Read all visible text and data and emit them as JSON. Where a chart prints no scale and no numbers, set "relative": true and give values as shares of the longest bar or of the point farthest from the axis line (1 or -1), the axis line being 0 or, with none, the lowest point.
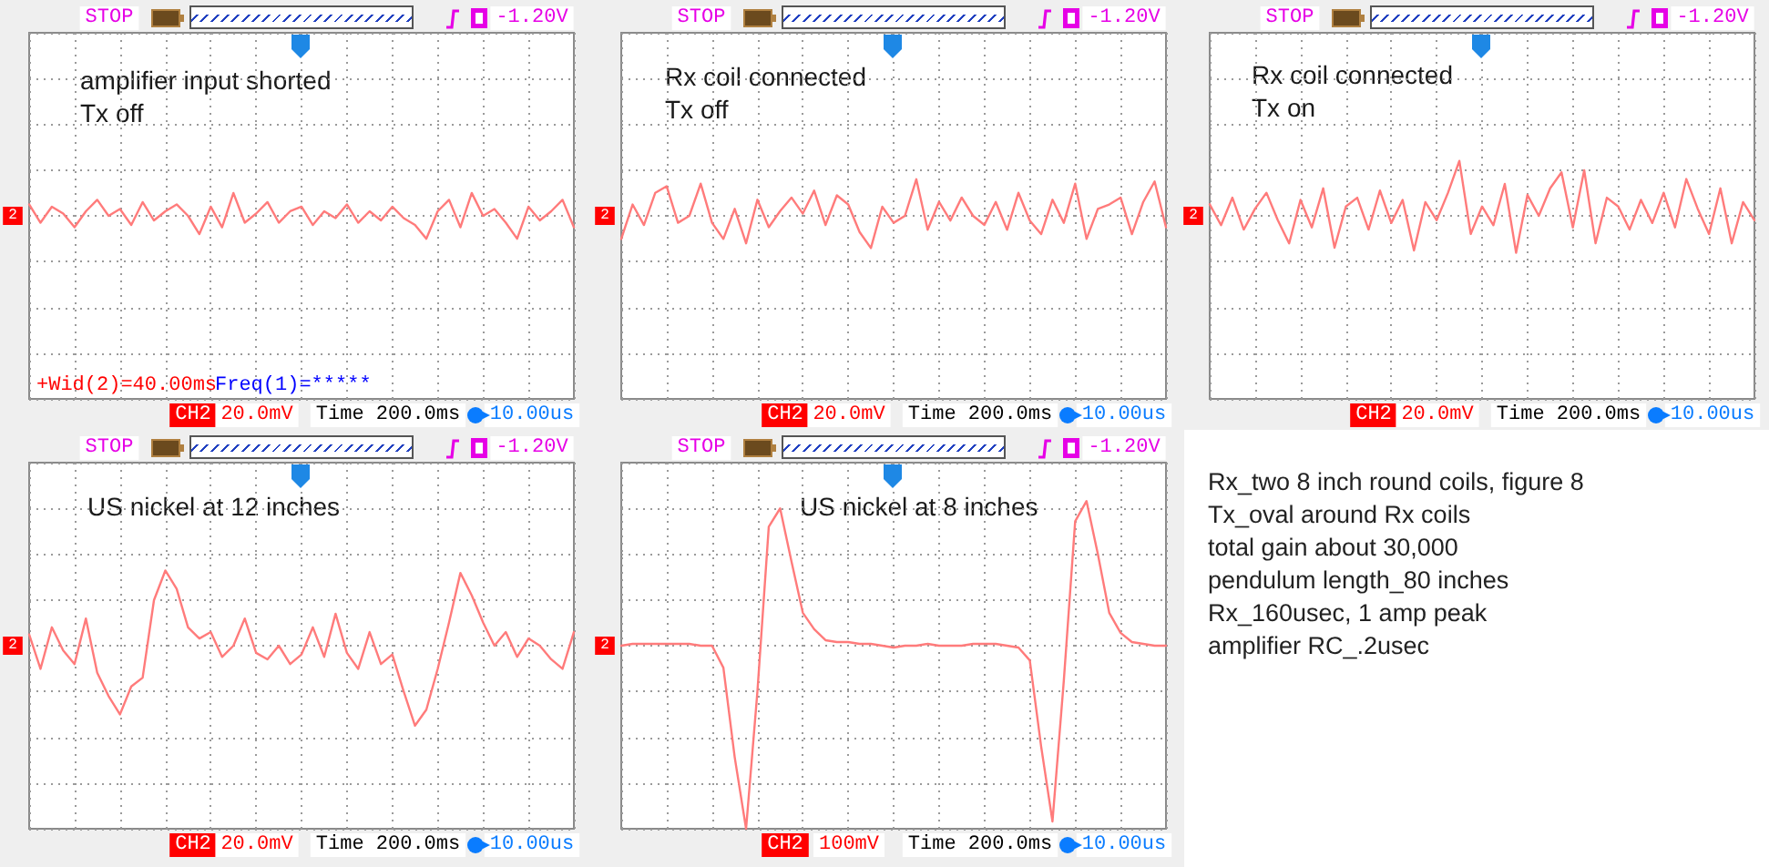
{
  "chart_data": [
    {
      "type": "line",
      "relative": true,
      "title": "amplifier input shorted",
      "subtitle": "Tx off",
      "annotations": [
        "STOP",
        "-1.20V",
        "CH2",
        "20.0mV",
        "Time 200.0ms",
        "10.00us",
        "2",
        "+Wid(2)=40.00ms",
        "Freq(1)=*****"
      ],
      "grid": true,
      "marker": "none",
      "line_style": "solid",
      "categories": [
        null,
        null,
        null,
        null,
        null,
        null,
        null,
        null,
        null,
        null,
        null,
        null,
        null,
        null,
        null,
        null,
        null,
        null,
        null,
        null,
        null,
        null,
        null,
        null,
        null,
        null,
        null,
        null,
        null,
        null,
        null,
        null,
        null,
        null,
        null,
        null,
        null,
        null,
        null,
        null,
        null,
        null,
        null,
        null,
        null,
        null,
        null,
        null,
        null
      ],
      "series": [
        {
          "color": "#ff7b7b",
          "values": [
            0.5,
            -0.3,
            0.4,
            0.1,
            -0.5,
            0.2,
            0.7,
            0,
            0.3,
            -0.4,
            0.6,
            -0.2,
            0.2,
            0.5,
            0,
            -0.8,
            0.4,
            -0.5,
            1,
            -0.3,
            0.1,
            0.6,
            -0.3,
            0.2,
            0.4,
            -0.4,
            0.2,
            -0.1,
            0.5,
            -0.3,
            0.2,
            -0.2,
            0.4,
            -0.1,
            -0.4,
            -1,
            0.2,
            0.7,
            -0.5,
            1,
            0,
            0.3,
            -0.3,
            -1,
            0.4,
            -0.2,
            0.2,
            0.7,
            -0.5
          ]
        }
      ]
    },
    {
      "type": "line",
      "relative": true,
      "title": "Rx coil connected",
      "subtitle": "Tx off",
      "annotations": [
        "STOP",
        "-1.20V",
        "CH2",
        "20.0mV",
        "Time 200.0ms",
        "10.00us",
        "2"
      ],
      "grid": true,
      "marker": "none",
      "line_style": "solid",
      "categories": [
        null,
        null,
        null,
        null,
        null,
        null,
        null,
        null,
        null,
        null,
        null,
        null,
        null,
        null,
        null,
        null,
        null,
        null,
        null,
        null,
        null,
        null,
        null,
        null,
        null,
        null,
        null,
        null,
        null,
        null,
        null,
        null,
        null,
        null,
        null,
        null,
        null,
        null,
        null,
        null,
        null,
        null,
        null,
        null,
        null,
        null,
        null,
        null,
        null
      ],
      "series": [
        {
          "color": "#ff7b7b",
          "values": [
            -0.63,
            0.31,
            -0.25,
            0.63,
            0.81,
            -0.19,
            0,
            0.88,
            -0.19,
            -0.63,
            0.19,
            -0.75,
            0.44,
            -0.31,
            0.13,
            0.5,
            0.06,
            0.69,
            -0.25,
            0.56,
            0.31,
            -0.44,
            -0.88,
            0.25,
            -0.19,
            0,
            1,
            -0.38,
            0.38,
            -0.13,
            0.5,
            0,
            -0.25,
            0.38,
            -0.38,
            0.63,
            -0.13,
            -0.5,
            0.44,
            -0.19,
            0.88,
            -0.63,
            0.19,
            0.31,
            0.5,
            -0.5,
            0.38,
            0.94,
            -0.31
          ]
        }
      ]
    },
    {
      "type": "line",
      "relative": true,
      "title": "Rx coil connected",
      "subtitle": "Tx on",
      "annotations": [
        "STOP",
        "-1.20V",
        "CH2",
        "20.0mV",
        "Time 200.0ms",
        "10.00us",
        "2"
      ],
      "grid": true,
      "marker": "none",
      "line_style": "solid",
      "categories": [
        null,
        null,
        null,
        null,
        null,
        null,
        null,
        null,
        null,
        null,
        null,
        null,
        null,
        null,
        null,
        null,
        null,
        null,
        null,
        null,
        null,
        null,
        null,
        null,
        null,
        null,
        null,
        null,
        null,
        null,
        null,
        null,
        null,
        null,
        null,
        null,
        null,
        null,
        null,
        null,
        null,
        null,
        null,
        null,
        null,
        null,
        null,
        null,
        null
      ],
      "series": [
        {
          "color": "#ff7b7b",
          "values": [
            0.21,
            -0.17,
            0.33,
            -0.25,
            0.13,
            0.42,
            -0.08,
            -0.5,
            0.29,
            -0.21,
            0.5,
            -0.58,
            0.17,
            0.33,
            -0.25,
            0.46,
            -0.13,
            0.29,
            -0.63,
            0.25,
            -0.08,
            0.42,
            1,
            -0.33,
            0.17,
            -0.17,
            0.58,
            -0.67,
            0.38,
            0,
            0.5,
            0.79,
            -0.21,
            0.83,
            -0.5,
            0.33,
            0.17,
            -0.25,
            0.29,
            -0.13,
            0.42,
            -0.21,
            0.67,
            0.13,
            -0.33,
            0.5,
            -0.5,
            0.25,
            -0.08
          ]
        }
      ]
    },
    {
      "type": "line",
      "relative": true,
      "title": "US nickel at 12 inches",
      "annotations": [
        "STOP",
        "-1.20V",
        "CH2",
        "20.0mV",
        "Time 200.0ms",
        "10.00us",
        "2"
      ],
      "grid": true,
      "marker": "none",
      "line_style": "solid",
      "categories": [
        null,
        null,
        null,
        null,
        null,
        null,
        null,
        null,
        null,
        null,
        null,
        null,
        null,
        null,
        null,
        null,
        null,
        null,
        null,
        null,
        null,
        null,
        null,
        null,
        null,
        null,
        null,
        null,
        null,
        null,
        null,
        null,
        null,
        null,
        null,
        null,
        null,
        null,
        null,
        null,
        null,
        null,
        null,
        null,
        null,
        null,
        null,
        null,
        null
      ],
      "series": [
        {
          "color": "#ff7b7b",
          "values": [
            0.14,
            -0.29,
            0.23,
            -0.06,
            -0.23,
            0.34,
            -0.34,
            -0.63,
            -0.86,
            -0.51,
            -0.4,
            0.57,
            0.94,
            0.71,
            0.23,
            0.09,
            0.17,
            -0.14,
            0,
            0.34,
            -0.09,
            -0.17,
            0,
            -0.23,
            -0.11,
            0.23,
            -0.14,
            0.4,
            -0.09,
            -0.29,
            0.17,
            -0.23,
            -0.11,
            -0.57,
            -1,
            -0.8,
            -0.29,
            0.29,
            0.91,
            0.63,
            0.29,
            0,
            0.17,
            -0.14,
            0.09,
            0,
            -0.17,
            -0.29,
            0.17
          ]
        }
      ]
    },
    {
      "type": "line",
      "relative": true,
      "title": "US nickel at 8 inches",
      "annotations": [
        "STOP",
        "-1.20V",
        "CH2",
        "100mV",
        "Time 200.0ms",
        "10.00us",
        "2"
      ],
      "grid": true,
      "marker": "none",
      "line_style": "solid",
      "categories": [
        null,
        null,
        null,
        null,
        null,
        null,
        null,
        null,
        null,
        null,
        null,
        null,
        null,
        null,
        null,
        null,
        null,
        null,
        null,
        null,
        null,
        null,
        null,
        null,
        null,
        null,
        null,
        null,
        null,
        null,
        null,
        null,
        null,
        null,
        null,
        null,
        null,
        null,
        null,
        null,
        null,
        null,
        null,
        null,
        null,
        null,
        null,
        null,
        null
      ],
      "series": [
        {
          "color": "#ff7b7b",
          "values": [
            0,
            0.01,
            0.01,
            0.01,
            0.01,
            0.01,
            0.01,
            0,
            0,
            -0.12,
            -0.61,
            -1,
            -0.25,
            0.65,
            0.75,
            0.46,
            0.18,
            0.09,
            0.03,
            0.02,
            0.02,
            0.01,
            0.01,
            0,
            -0.01,
            0,
            0,
            0.01,
            0,
            0,
            0,
            0.01,
            0.01,
            0.01,
            0,
            -0.01,
            -0.08,
            -0.55,
            -0.96,
            -0.19,
            0.68,
            0.79,
            0.5,
            0.18,
            0.07,
            0.02,
            0.01,
            0,
            0
          ]
        }
      ]
    },
    {
      "type": "other",
      "annotations": [
        "Rx_two 8 inch round coils, figure 8",
        "Tx_oval around Rx coils",
        "total gain about 30,000",
        "pendulum length_80 inches",
        "Rx_160usec, 1 amp peak",
        "amplifier RC_.2usec"
      ]
    }
  ]
}
